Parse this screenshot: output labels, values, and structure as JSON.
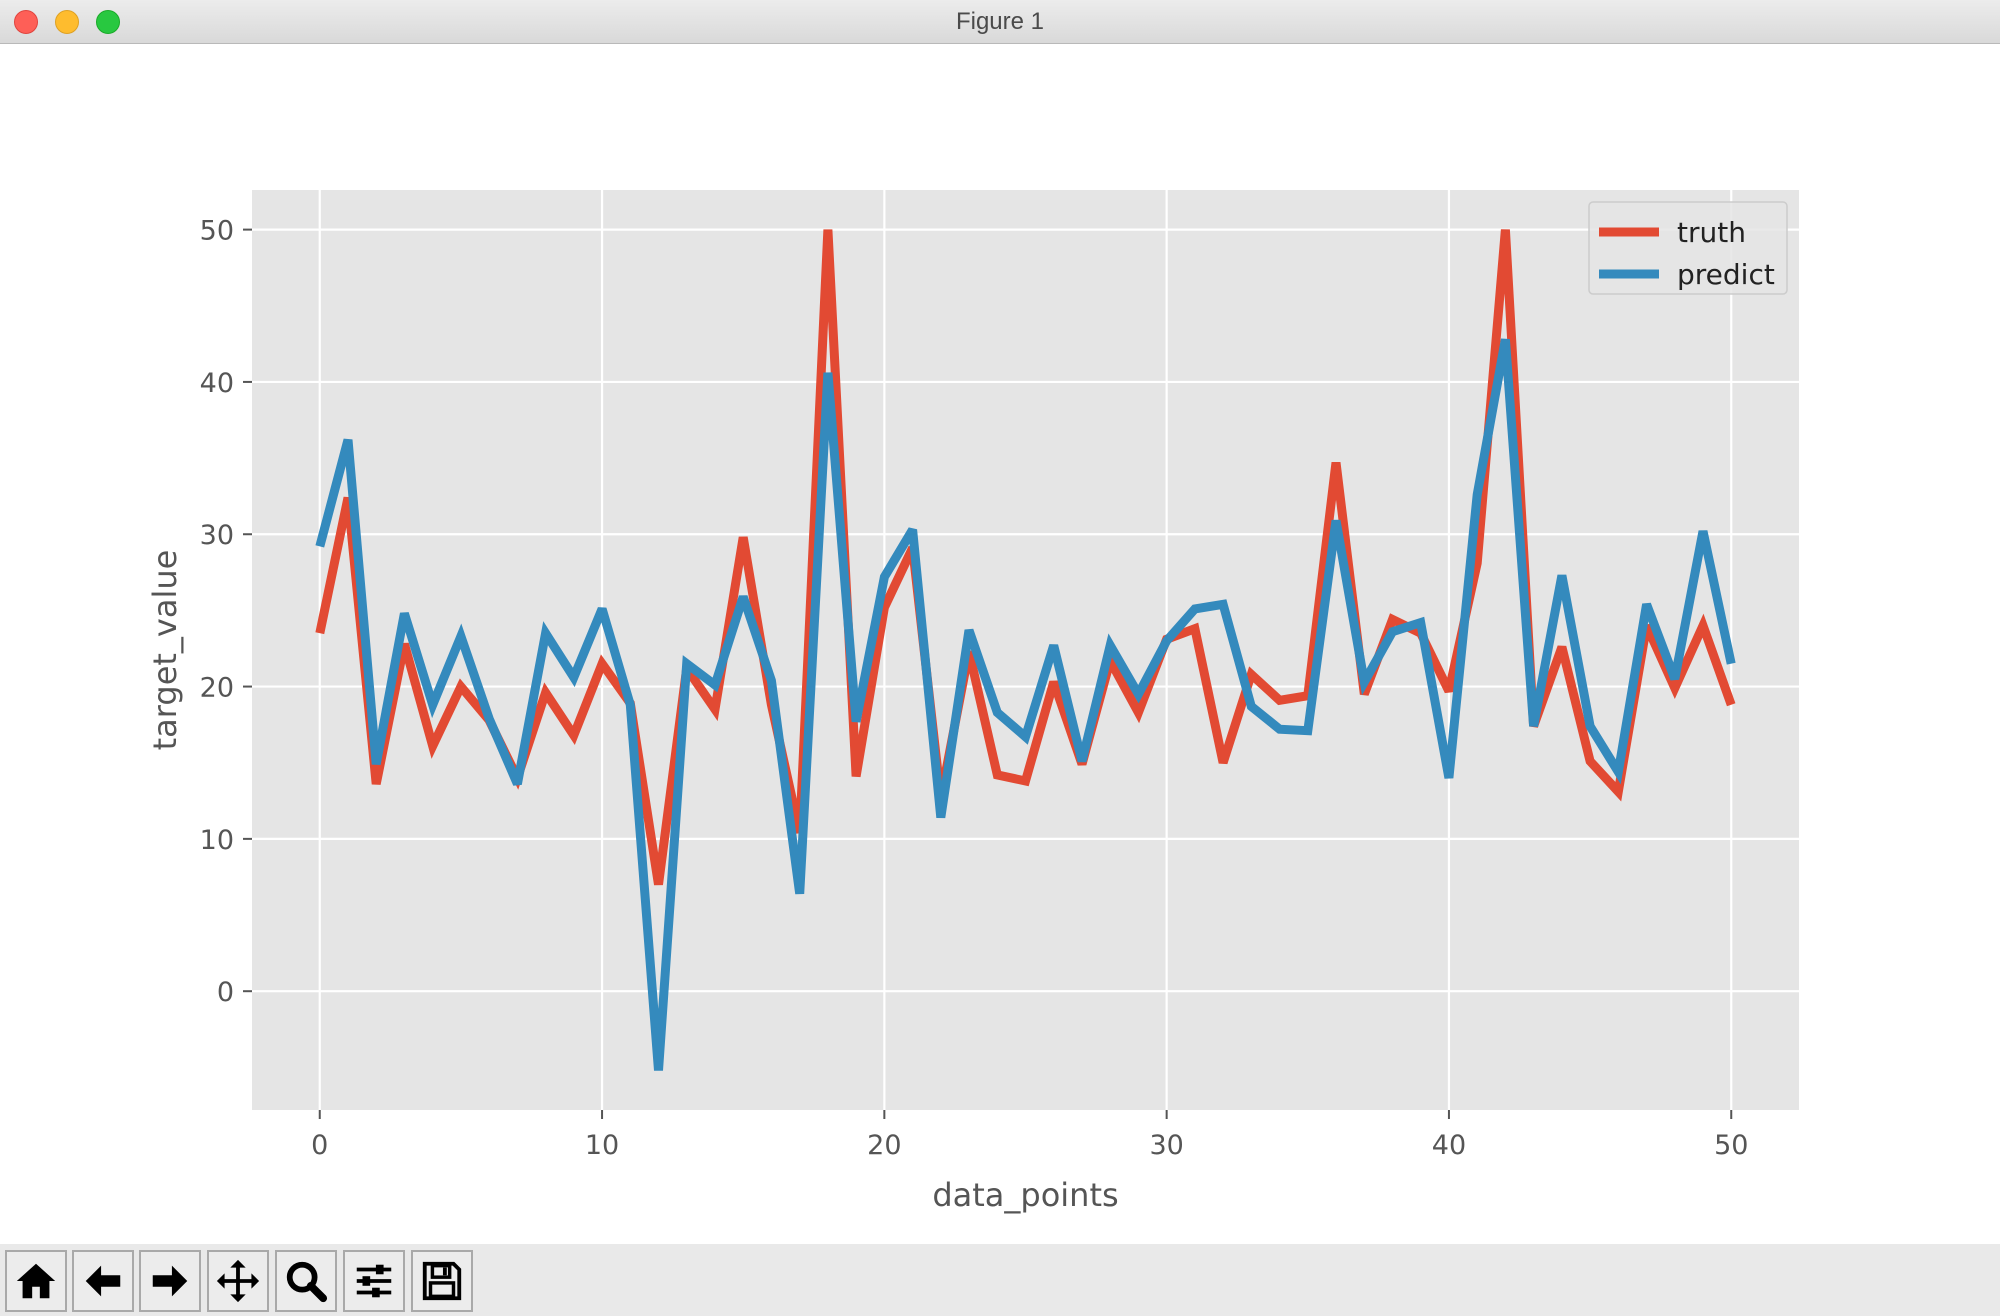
{
  "window": {
    "title": "Figure 1"
  },
  "toolbar": {
    "buttons": [
      {
        "icon": "home-icon",
        "name": "home-button"
      },
      {
        "icon": "back-arrow-icon",
        "name": "back-button"
      },
      {
        "icon": "forward-arrow-icon",
        "name": "forward-button"
      },
      {
        "icon": "pan-move-icon",
        "name": "pan-button"
      },
      {
        "icon": "zoom-magnifier-icon",
        "name": "zoom-button"
      },
      {
        "icon": "configure-sliders-icon",
        "name": "configure-subplots-button"
      },
      {
        "icon": "save-floppy-icon",
        "name": "save-button"
      }
    ]
  },
  "chart_data": {
    "type": "line",
    "style": "ggplot",
    "xlabel": "data_points",
    "ylabel": "target_value",
    "xlim": [
      -2.4,
      52.4
    ],
    "ylim": [
      -7.8,
      52.6
    ],
    "xticks": [
      0,
      10,
      20,
      30,
      40,
      50
    ],
    "yticks": [
      0,
      10,
      20,
      30,
      40,
      50
    ],
    "grid": true,
    "legend_position": "upper right",
    "x": [
      0,
      1,
      2,
      3,
      4,
      5,
      6,
      7,
      8,
      9,
      10,
      11,
      12,
      13,
      14,
      15,
      16,
      17,
      18,
      19,
      20,
      21,
      22,
      23,
      24,
      25,
      26,
      27,
      28,
      29,
      30,
      31,
      32,
      33,
      34,
      35,
      36,
      37,
      38,
      39,
      40,
      41,
      42,
      43,
      44,
      45,
      46,
      47,
      48,
      49,
      50
    ],
    "series": [
      {
        "name": "truth",
        "color": "#E24A33",
        "values": [
          23.5,
          32.4,
          13.6,
          22.8,
          16.1,
          20.0,
          17.8,
          14.0,
          19.6,
          16.8,
          21.5,
          18.9,
          7.0,
          21.2,
          18.5,
          29.8,
          18.8,
          10.4,
          50.0,
          14.1,
          25.2,
          29.1,
          12.7,
          22.3,
          14.2,
          13.8,
          20.3,
          14.9,
          21.7,
          18.3,
          23.1,
          23.8,
          15.0,
          20.8,
          19.1,
          19.4,
          34.7,
          19.5,
          24.4,
          23.5,
          19.7,
          28.1,
          50.0,
          17.4,
          22.6,
          15.1,
          13.1,
          24.0,
          19.9,
          24.0,
          18.8
        ]
      },
      {
        "name": "predict",
        "color": "#348ABD",
        "values": [
          29.2,
          36.2,
          14.9,
          24.8,
          18.8,
          23.3,
          17.9,
          13.6,
          23.5,
          20.6,
          25.1,
          18.8,
          -5.2,
          21.5,
          20.1,
          25.9,
          20.4,
          6.4,
          40.6,
          17.7,
          27.2,
          30.3,
          11.4,
          23.7,
          18.3,
          16.7,
          22.7,
          15.1,
          22.7,
          19.5,
          23.0,
          25.1,
          25.4,
          18.7,
          17.2,
          17.1,
          30.9,
          20.3,
          23.6,
          24.2,
          14.0,
          32.6,
          42.8,
          17.4,
          27.3,
          17.4,
          14.4,
          25.4,
          20.5,
          30.2,
          21.5
        ]
      }
    ]
  }
}
